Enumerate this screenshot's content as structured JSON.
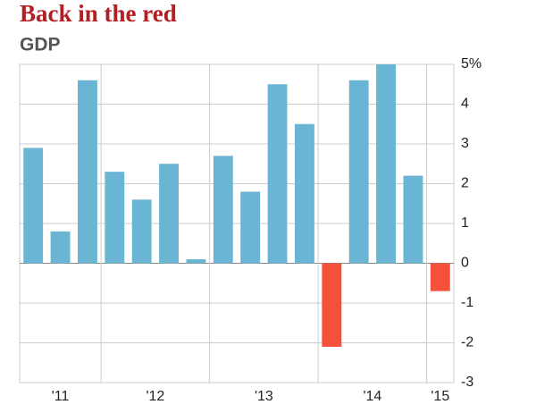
{
  "chart_data": {
    "type": "bar",
    "title": "Back in the red",
    "subtitle": "GDP",
    "categories": [
      "'11",
      null,
      null,
      "'12",
      null,
      null,
      null,
      "'13",
      null,
      null,
      null,
      "'14",
      null,
      null,
      null,
      "'15"
    ],
    "values": [
      2.9,
      0.8,
      4.6,
      2.3,
      1.6,
      2.5,
      0.1,
      2.7,
      1.8,
      4.5,
      3.5,
      -2.1,
      4.6,
      5.0,
      2.2,
      -0.7
    ],
    "color": "#6ab4d4",
    "negative_color": "#f4513a",
    "ylim": [
      -3,
      5
    ],
    "yticks": [
      -3,
      -2,
      -1,
      0,
      1,
      2,
      3,
      4,
      {
        "value": 5,
        "label": "5%"
      }
    ],
    "grid": true
  }
}
